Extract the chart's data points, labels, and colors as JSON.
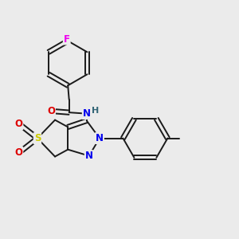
{
  "background_color": "#ebebeb",
  "bond_color": "#1a1a1a",
  "atom_colors": {
    "F": "#ee00ee",
    "O": "#dd0000",
    "N": "#0000ee",
    "H": "#336677",
    "S": "#cccc00",
    "C": "#1a1a1a"
  },
  "figsize": [
    3.0,
    3.0
  ],
  "dpi": 100
}
